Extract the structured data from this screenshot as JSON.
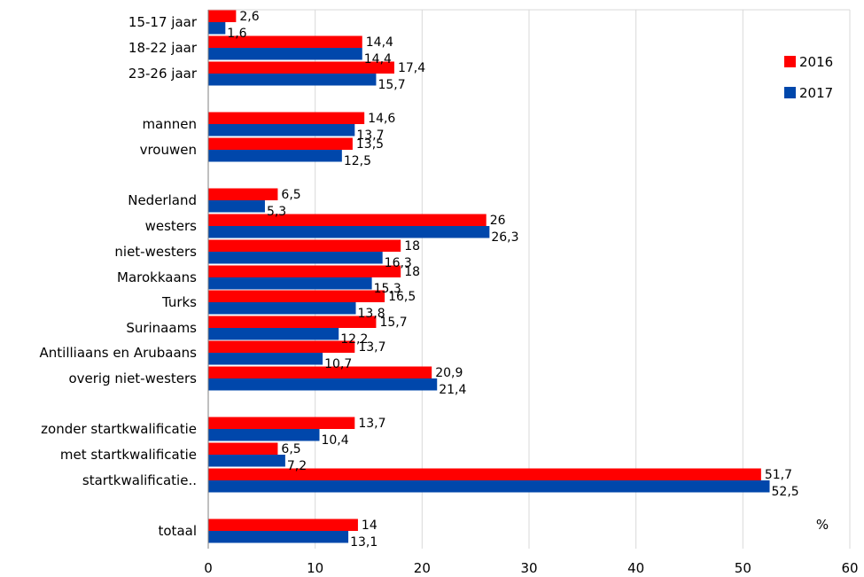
{
  "chart_data": {
    "type": "bar",
    "orientation": "horizontal",
    "categories": [
      "15-17 jaar",
      "18-22 jaar",
      "23-26 jaar",
      "mannen",
      "vrouwen",
      "Nederland",
      "westers",
      "niet-westers",
      "Marokkaans",
      "Turks",
      "Surinaams",
      "Antilliaans en Arubaans",
      "overig niet-westers",
      "zonder startkwalificatie",
      "met startkwalificatie",
      "startkwalificatie..",
      "totaal"
    ],
    "series": [
      {
        "name": "2016",
        "color": "#ff0000",
        "values": [
          2.6,
          14.4,
          17.4,
          14.6,
          13.5,
          6.5,
          26,
          18,
          18,
          16.5,
          15.7,
          13.7,
          20.9,
          13.7,
          6.5,
          51.7,
          14
        ],
        "labels": [
          "2,6",
          "14,4",
          "17,4",
          "14,6",
          "13,5",
          "6,5",
          "26",
          "18",
          "18",
          "16,5",
          "15,7",
          "13,7",
          "20,9",
          "13,7",
          "6,5",
          "51,7",
          "14"
        ]
      },
      {
        "name": "2017",
        "color": "#0047ab",
        "values": [
          1.6,
          14.4,
          15.7,
          13.7,
          12.5,
          5.3,
          26.3,
          16.3,
          15.3,
          13.8,
          12.2,
          10.7,
          21.4,
          10.4,
          7.2,
          52.5,
          13.1
        ],
        "labels": [
          "1,6",
          "14,4",
          "15,7",
          "13,7",
          "12,5",
          "5,3",
          "26,3",
          "16,3",
          "15,3",
          "13,8",
          "12,2",
          "10,7",
          "21,4",
          "10,4",
          "7,2",
          "52,5",
          "13,1"
        ]
      }
    ],
    "xlim": [
      0,
      60
    ],
    "xticks": [
      0,
      10,
      20,
      30,
      40,
      50,
      60
    ],
    "unit_label": "%",
    "legend_position": "top-right",
    "grid": "vertical"
  }
}
